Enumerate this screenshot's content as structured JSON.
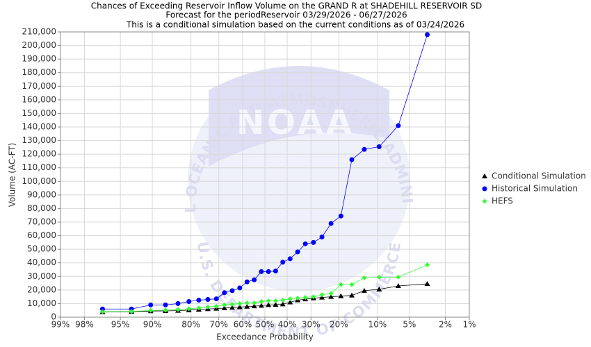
{
  "chart_data": {
    "type": "line",
    "title": "Chances of Exceeding Reservoir Inflow Volume on the GRAND R at SHADEHILL RESERVOIR SD",
    "subtitle": [
      "Forecast for the periodReservoir 03/29/2026 - 06/27/2026",
      "This is a conditional simulation based on the current conditions as of 03/24/2026"
    ],
    "watermark": {
      "top": "NATIONAL OCEANIC AND ATMOSPHERIC ADMINISTRATION",
      "bottom": "U.S. DEPARTMENT OF COMMERCE",
      "logo": "NOAA"
    },
    "xlabel": "Exceedance Probability",
    "ylabel": "Volume (AC-FT)",
    "xscale": "probit",
    "xlim": [
      99,
      1
    ],
    "xticks": [
      {
        "value": 99,
        "label": "99%"
      },
      {
        "value": 98,
        "label": "98%"
      },
      {
        "value": 95,
        "label": "95%"
      },
      {
        "value": 90,
        "label": "90%"
      },
      {
        "value": 80,
        "label": "80%"
      },
      {
        "value": 70,
        "label": "70%"
      },
      {
        "value": 60,
        "label": "60%"
      },
      {
        "value": 50,
        "label": "50%"
      },
      {
        "value": 40,
        "label": "40%"
      },
      {
        "value": 30,
        "label": "30%"
      },
      {
        "value": 20,
        "label": "20%"
      },
      {
        "value": 10,
        "label": "10%"
      },
      {
        "value": 5,
        "label": "5%"
      },
      {
        "value": 2,
        "label": "2%"
      },
      {
        "value": 1,
        "label": "1%"
      }
    ],
    "ylim": [
      0,
      210000
    ],
    "yticks": [
      0,
      {
        "value": 10000,
        "label": "10,000"
      },
      {
        "value": 20000,
        "label": "20,000"
      },
      {
        "value": 30000,
        "label": "30,000"
      },
      {
        "value": 40000,
        "label": "40,000"
      },
      {
        "value": 50000,
        "label": "50,000"
      },
      {
        "value": 60000,
        "label": "60,000"
      },
      {
        "value": 70000,
        "label": "70,000"
      },
      {
        "value": 80000,
        "label": "80,000"
      },
      {
        "value": 90000,
        "label": "90,000"
      },
      {
        "value": 100000,
        "label": "100,000"
      },
      {
        "value": 110000,
        "label": "110,000"
      },
      {
        "value": 120000,
        "label": "120,000"
      },
      {
        "value": 130000,
        "label": "130,000"
      },
      {
        "value": 140000,
        "label": "140,000"
      },
      {
        "value": 150000,
        "label": "150,000"
      },
      {
        "value": 160000,
        "label": "160,000"
      },
      {
        "value": 170000,
        "label": "170,000"
      },
      {
        "value": 180000,
        "label": "180,000"
      },
      {
        "value": 190000,
        "label": "190,000"
      },
      {
        "value": 200000,
        "label": "200,000"
      },
      {
        "value": 210000,
        "label": "210,000"
      }
    ],
    "grid": true,
    "legend": "right",
    "x": [
      96.77,
      93.55,
      90.32,
      87.1,
      83.87,
      80.65,
      77.42,
      74.19,
      70.97,
      67.74,
      64.52,
      61.29,
      58.06,
      54.84,
      51.61,
      48.39,
      45.16,
      41.94,
      38.71,
      35.48,
      32.26,
      29.03,
      25.81,
      22.58,
      19.35,
      16.13,
      12.9,
      9.68,
      6.45,
      3.23
    ],
    "series": [
      {
        "name": "Conditional Simulation",
        "color": "#000000",
        "marker": "triangle",
        "values": [
          3800,
          4000,
          4500,
          4600,
          4800,
          5200,
          5600,
          6000,
          6300,
          6700,
          7000,
          7400,
          7800,
          8100,
          8500,
          9000,
          9200,
          9500,
          11000,
          12500,
          13200,
          14000,
          14500,
          15000,
          15500,
          16000,
          19500,
          20500,
          23000,
          24500
        ]
      },
      {
        "name": "Historical Simulation",
        "color": "#0000ff",
        "marker": "circle",
        "values": [
          6000,
          6000,
          9000,
          9000,
          10000,
          11500,
          12500,
          13000,
          13500,
          18000,
          19500,
          21500,
          26000,
          27500,
          33500,
          33500,
          34000,
          40500,
          43000,
          48000,
          54000,
          55000,
          59000,
          69000,
          74500,
          116000,
          123500,
          125500,
          141000,
          208000
        ]
      },
      {
        "name": "HEFS",
        "color": "#33ff33",
        "marker": "diamond",
        "values": [
          4000,
          4200,
          5000,
          5200,
          5600,
          6200,
          6800,
          7500,
          8000,
          9000,
          9500,
          10000,
          10500,
          10500,
          11500,
          12000,
          12000,
          12500,
          13500,
          14000,
          14500,
          15000,
          16500,
          17500,
          24000,
          24000,
          29000,
          29500,
          29500,
          38500
        ]
      }
    ]
  }
}
